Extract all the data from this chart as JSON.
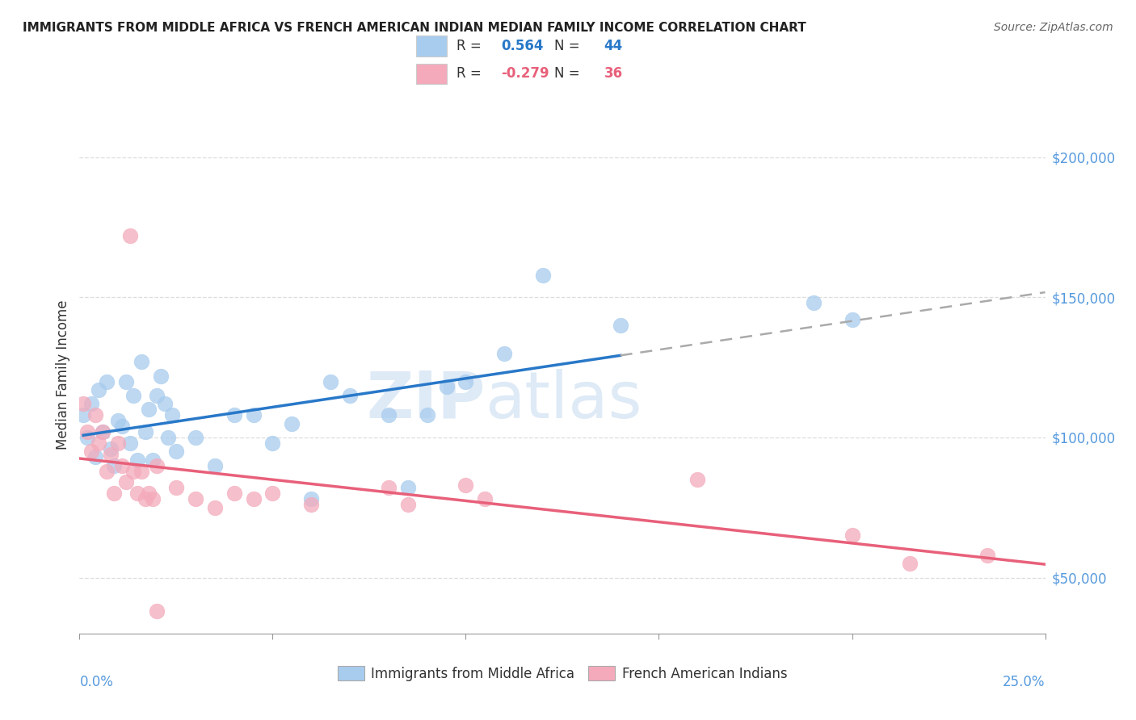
{
  "title": "IMMIGRANTS FROM MIDDLE AFRICA VS FRENCH AMERICAN INDIAN MEDIAN FAMILY INCOME CORRELATION CHART",
  "source": "Source: ZipAtlas.com",
  "ylabel": "Median Family Income",
  "yticks": [
    50000,
    100000,
    150000,
    200000
  ],
  "ytick_labels": [
    "$50,000",
    "$100,000",
    "$150,000",
    "$200,000"
  ],
  "xlim": [
    0.0,
    0.25
  ],
  "ylim": [
    30000,
    215000
  ],
  "blue_R": 0.564,
  "blue_N": 44,
  "pink_R": -0.279,
  "pink_N": 36,
  "blue_color": "#A8CCEE",
  "pink_color": "#F4AABB",
  "blue_line_color": "#2878C8",
  "pink_line_color": "#E8607A",
  "dashed_color": "#AAAAAA",
  "legend_blue_label": "Immigrants from Middle Africa",
  "legend_pink_label": "French American Indians",
  "watermark_zip": "ZIP",
  "watermark_atlas": "atlas",
  "right_label_color": "#5599DD",
  "blue_points": [
    [
      0.001,
      108000
    ],
    [
      0.002,
      100000
    ],
    [
      0.003,
      112000
    ],
    [
      0.004,
      93000
    ],
    [
      0.005,
      117000
    ],
    [
      0.006,
      102000
    ],
    [
      0.007,
      120000
    ],
    [
      0.008,
      96000
    ],
    [
      0.009,
      90000
    ],
    [
      0.01,
      106000
    ],
    [
      0.011,
      104000
    ],
    [
      0.012,
      120000
    ],
    [
      0.013,
      98000
    ],
    [
      0.014,
      115000
    ],
    [
      0.015,
      92000
    ],
    [
      0.016,
      127000
    ],
    [
      0.017,
      102000
    ],
    [
      0.018,
      110000
    ],
    [
      0.019,
      92000
    ],
    [
      0.02,
      115000
    ],
    [
      0.021,
      122000
    ],
    [
      0.022,
      112000
    ],
    [
      0.023,
      100000
    ],
    [
      0.024,
      108000
    ],
    [
      0.025,
      95000
    ],
    [
      0.03,
      100000
    ],
    [
      0.035,
      90000
    ],
    [
      0.04,
      108000
    ],
    [
      0.045,
      108000
    ],
    [
      0.05,
      98000
    ],
    [
      0.055,
      105000
    ],
    [
      0.06,
      78000
    ],
    [
      0.065,
      120000
    ],
    [
      0.07,
      115000
    ],
    [
      0.08,
      108000
    ],
    [
      0.085,
      82000
    ],
    [
      0.09,
      108000
    ],
    [
      0.095,
      118000
    ],
    [
      0.1,
      120000
    ],
    [
      0.11,
      130000
    ],
    [
      0.12,
      158000
    ],
    [
      0.14,
      140000
    ],
    [
      0.19,
      148000
    ],
    [
      0.2,
      142000
    ]
  ],
  "pink_points": [
    [
      0.001,
      112000
    ],
    [
      0.002,
      102000
    ],
    [
      0.003,
      95000
    ],
    [
      0.004,
      108000
    ],
    [
      0.005,
      98000
    ],
    [
      0.006,
      102000
    ],
    [
      0.007,
      88000
    ],
    [
      0.008,
      94000
    ],
    [
      0.009,
      80000
    ],
    [
      0.01,
      98000
    ],
    [
      0.011,
      90000
    ],
    [
      0.012,
      84000
    ],
    [
      0.013,
      172000
    ],
    [
      0.014,
      88000
    ],
    [
      0.015,
      80000
    ],
    [
      0.016,
      88000
    ],
    [
      0.017,
      78000
    ],
    [
      0.018,
      80000
    ],
    [
      0.019,
      78000
    ],
    [
      0.02,
      90000
    ],
    [
      0.025,
      82000
    ],
    [
      0.03,
      78000
    ],
    [
      0.035,
      75000
    ],
    [
      0.04,
      80000
    ],
    [
      0.045,
      78000
    ],
    [
      0.05,
      80000
    ],
    [
      0.06,
      76000
    ],
    [
      0.08,
      82000
    ],
    [
      0.085,
      76000
    ],
    [
      0.1,
      83000
    ],
    [
      0.105,
      78000
    ],
    [
      0.16,
      85000
    ],
    [
      0.2,
      65000
    ],
    [
      0.215,
      55000
    ],
    [
      0.235,
      58000
    ],
    [
      0.02,
      38000
    ]
  ]
}
